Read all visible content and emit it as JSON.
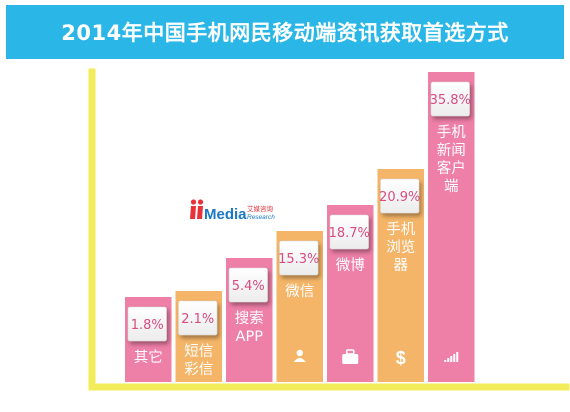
{
  "header": {
    "title": "2014年中国手机网民移动端资讯获取首选方式"
  },
  "logo": {
    "brand": "iiMedia",
    "cn": "艾媒咨询",
    "en": "Research"
  },
  "colors": {
    "banner": "#2ab7e8",
    "pink": "#ee7fa6",
    "orange": "#f5b568",
    "axis": "#f3ec5a",
    "box_text": "#d94c82"
  },
  "chart_data": {
    "type": "bar",
    "title": "2014年中国手机网民移动端资讯获取首选方式",
    "unit": "%",
    "categories": [
      "其它",
      "短信彩信",
      "搜索APP",
      "微信",
      "微博",
      "手机浏览器",
      "手机新闻客户端"
    ],
    "display_labels": [
      [
        "其它"
      ],
      [
        "短信",
        "彩信"
      ],
      [
        "搜索",
        "APP"
      ],
      [
        "微信"
      ],
      [
        "微博"
      ],
      [
        "手机",
        "浏览",
        "器"
      ],
      [
        "手机",
        "新闻",
        "客户",
        "端"
      ]
    ],
    "values": [
      1.8,
      2.1,
      5.4,
      15.3,
      18.7,
      20.9,
      35.8
    ],
    "value_labels": [
      "1.8%",
      "2.1%",
      "5.4%",
      "15.3%",
      "18.7%",
      "20.9%",
      "35.8%"
    ],
    "bar_colors": [
      "pink",
      "orange",
      "pink",
      "orange",
      "pink",
      "orange",
      "pink"
    ],
    "bar_icons": [
      "none",
      "none",
      "none",
      "person-icon",
      "briefcase-icon",
      "dollar-icon",
      "signal-bars-icon"
    ],
    "ylim": [
      0,
      40
    ]
  }
}
